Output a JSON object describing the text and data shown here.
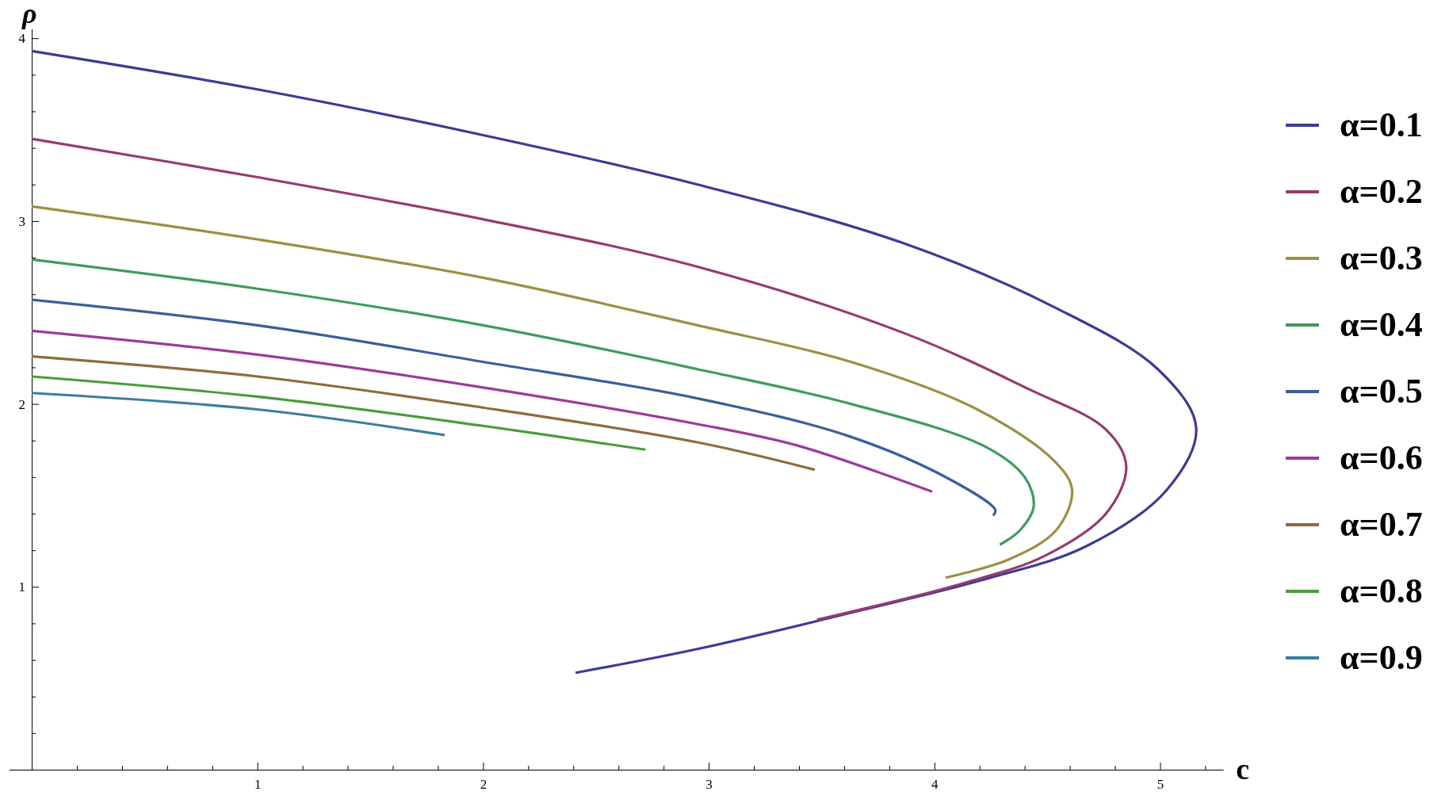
{
  "chart_data": {
    "type": "line",
    "xlabel": "c",
    "ylabel": "ρ",
    "legend": "right",
    "xlim": [
      -0.1,
      5.28
    ],
    "ylim": [
      0,
      4.05
    ],
    "xticks": [
      {
        "value": 0.2,
        "label": null
      },
      {
        "value": 0.4,
        "label": null
      },
      {
        "value": 0.6,
        "label": null
      },
      {
        "value": 0.8,
        "label": null
      },
      1,
      {
        "value": 1.2,
        "label": null
      },
      {
        "value": 1.4,
        "label": null
      },
      {
        "value": 1.6,
        "label": null
      },
      {
        "value": 1.8,
        "label": null
      },
      2,
      {
        "value": 2.2,
        "label": null
      },
      {
        "value": 2.4,
        "label": null
      },
      {
        "value": 2.6,
        "label": null
      },
      {
        "value": 2.8,
        "label": null
      },
      3,
      {
        "value": 3.2,
        "label": null
      },
      {
        "value": 3.4,
        "label": null
      },
      {
        "value": 3.6,
        "label": null
      },
      {
        "value": 3.8,
        "label": null
      },
      4,
      {
        "value": 4.2,
        "label": null
      },
      {
        "value": 4.4,
        "label": null
      },
      {
        "value": 4.6,
        "label": null
      },
      {
        "value": 4.8,
        "label": null
      },
      5,
      {
        "value": 5.2,
        "label": null
      }
    ],
    "yticks": [
      {
        "value": 0.2,
        "label": null
      },
      {
        "value": 0.4,
        "label": null
      },
      {
        "value": 0.6,
        "label": null
      },
      {
        "value": 0.8,
        "label": null
      },
      1,
      {
        "value": 1.2,
        "label": null
      },
      {
        "value": 1.4,
        "label": null
      },
      {
        "value": 1.6,
        "label": null
      },
      {
        "value": 1.8,
        "label": null
      },
      2,
      {
        "value": 2.2,
        "label": null
      },
      {
        "value": 2.4,
        "label": null
      },
      {
        "value": 2.6,
        "label": null
      },
      {
        "value": 2.8,
        "label": null
      },
      3,
      {
        "value": 3.2,
        "label": null
      },
      {
        "value": 3.4,
        "label": null
      },
      {
        "value": 3.6,
        "label": null
      },
      {
        "value": 3.8,
        "label": null
      },
      4
    ],
    "grid": false,
    "marker": "none",
    "line_style": "solid",
    "series": [
      {
        "name": "α=0.1",
        "color": "#3b3b95",
        "x": [
          0,
          1,
          2,
          2.95,
          3.86,
          4.53,
          4.99,
          5.16,
          5.03,
          4.67,
          4.22,
          3.67,
          2.95,
          2.41
        ],
        "values": [
          3.93,
          3.72,
          3.47,
          3.2,
          2.88,
          2.53,
          2.19,
          1.87,
          1.53,
          1.22,
          1.04,
          0.87,
          0.66,
          0.53
        ]
      },
      {
        "name": "α=0.2",
        "color": "#953b6d",
        "x": [
          0,
          1,
          2,
          2.95,
          3.86,
          4.42,
          4.76,
          4.85,
          4.76,
          4.49,
          4.13,
          3.48
        ],
        "values": [
          3.45,
          3.24,
          3.01,
          2.75,
          2.39,
          2.08,
          1.86,
          1.66,
          1.4,
          1.17,
          1.02,
          0.82
        ]
      },
      {
        "name": "α=0.3",
        "color": "#9b8f45",
        "x": [
          0,
          1,
          2,
          2.95,
          3.63,
          4.19,
          4.53,
          4.61,
          4.54,
          4.33,
          4.05
        ],
        "values": [
          3.08,
          2.9,
          2.69,
          2.43,
          2.23,
          1.97,
          1.69,
          1.53,
          1.31,
          1.15,
          1.05
        ]
      },
      {
        "name": "α=0.4",
        "color": "#3f9b5c",
        "x": [
          0,
          1,
          2,
          2.95,
          3.63,
          4.22,
          4.4,
          4.44,
          4.38,
          4.29
        ],
        "values": [
          2.79,
          2.63,
          2.43,
          2.19,
          2.0,
          1.77,
          1.6,
          1.44,
          1.31,
          1.23
        ]
      },
      {
        "name": "α=0.5",
        "color": "#3b5e9b",
        "x": [
          0,
          1,
          2,
          2.95,
          3.63,
          4.08,
          4.27,
          4.26
        ],
        "values": [
          2.57,
          2.43,
          2.23,
          2.03,
          1.82,
          1.58,
          1.42,
          1.39
        ]
      },
      {
        "name": "α=0.6",
        "color": "#9b3b9b",
        "x": [
          0,
          1,
          2,
          2.95,
          3.4,
          3.99
        ],
        "values": [
          2.4,
          2.27,
          2.09,
          1.89,
          1.77,
          1.52
        ]
      },
      {
        "name": "α=0.7",
        "color": "#8f6b3b",
        "x": [
          0,
          1,
          2,
          2.95,
          3.47
        ],
        "values": [
          2.26,
          2.15,
          1.98,
          1.79,
          1.64
        ]
      },
      {
        "name": "α=0.8",
        "color": "#4b9b3b",
        "x": [
          0,
          1,
          2,
          2.72
        ],
        "values": [
          2.15,
          2.04,
          1.88,
          1.75
        ]
      },
      {
        "name": "α=0.9",
        "color": "#3b7f9b",
        "x": [
          0,
          1,
          1.83
        ],
        "values": [
          2.06,
          1.97,
          1.83
        ]
      }
    ]
  }
}
